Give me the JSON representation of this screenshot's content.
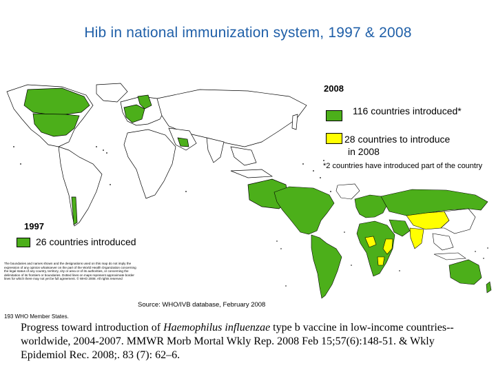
{
  "title": "Hib in national immunization system, 1997 & 2008",
  "colors": {
    "title": "#1f5fa8",
    "introduced": "#4caf1a",
    "to_introduce": "#ffff00",
    "no_data_land": "#ffffff",
    "border": "#000000"
  },
  "legend_2008": {
    "year": "2008",
    "items": [
      {
        "label": "116 countries introduced*",
        "color": "#4caf1a"
      },
      {
        "label_line1": "28 countries to introduce",
        "label_line2": "in 2008",
        "color": "#ffff00"
      }
    ],
    "footnote": "*2 countries have introduced part of the country"
  },
  "legend_1997": {
    "year": "1997",
    "items": [
      {
        "label": "26 countries introduced",
        "color": "#4caf1a"
      }
    ]
  },
  "disclaimer": "The boundaries and names shown and the designations used on this map do not imply the expression of any opinion whatsoever on the part of the World Health Organization concerning the legal status of any country, territory, city or area or of its authorities, or concerning the delimitation of its frontiers or boundaries. Dotted lines on maps represent approximate border lines for which there may not yet be full agreement. © WHO 2008. All rights reserved",
  "source": "Source: WHO/IVB database, February 2008",
  "member_states": "193 WHO Member States.",
  "citation": {
    "part1": "Progress toward introduction of ",
    "italic": "Haemophilus influenzae",
    "part2": " type b vaccine in low-income countries--worldwide, 2004-2007. MMWR Morb Mortal Wkly Rep. 2008 Feb 15;57(6):148-51. & Wkly Epidemiol Rec. 2008;. 83 (7): 62–6."
  }
}
